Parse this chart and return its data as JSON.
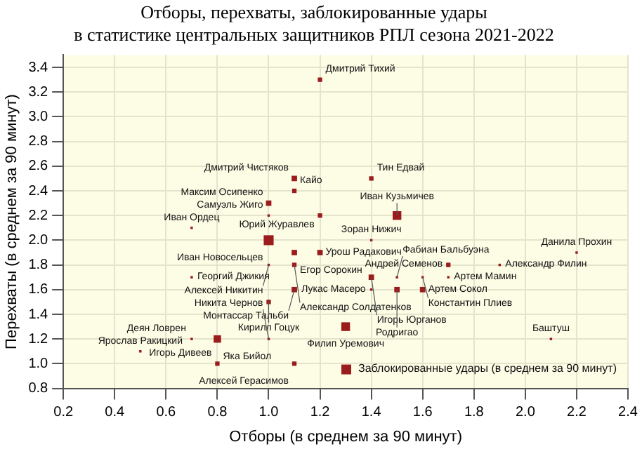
{
  "chart_data": {
    "type": "bubble",
    "title": "Отборы, перехваты, заблокированные удары\nв статистике центральных защитников РПЛ сезона 2021-2022",
    "xlabel": "Отборы (в среднем за 90 минут)",
    "ylabel": "Перехваты (в среднем за 90 минут)",
    "xlim": [
      0.2,
      2.4
    ],
    "xticks": [
      0.2,
      0.4,
      0.6,
      0.8,
      {
        "value": 1,
        "label": "1.0"
      },
      1.2,
      1.4,
      1.6,
      1.8,
      {
        "value": 2,
        "label": "2.0"
      },
      2.2,
      2.4
    ],
    "ylim": [
      0.8,
      3.5
    ],
    "yticks": [
      0.8,
      {
        "value": 1,
        "label": "1.0"
      },
      1.2,
      1.4,
      1.6,
      1.8,
      {
        "value": 2,
        "label": "2.0"
      },
      2.2,
      2.4,
      2.6,
      2.8,
      {
        "value": 3,
        "label": "3.0"
      },
      3.2,
      3.4
    ],
    "grid": true,
    "legend": "bottom right",
    "marker": "square",
    "series": [
      {
        "name": "Заблокированные удары (в среднем за 90 минут)",
        "color": "#9b1c1c",
        "x": [
          1.2,
          1.1,
          1.1,
          1.0,
          1.0,
          1.2,
          1.4,
          1.5,
          0.7,
          1.0,
          1.1,
          1.2,
          1.4,
          1.0,
          1.1,
          0.7,
          1.1,
          1.0,
          1.3,
          0.8,
          0.7,
          1.0,
          0.5,
          0.8,
          1.1,
          1.4,
          1.4,
          1.5,
          1.5,
          1.6,
          1.7,
          1.6,
          1.7,
          1.9,
          2.2,
          2.1
        ],
        "values": [
          3.3,
          2.5,
          2.4,
          2.3,
          2.2,
          2.2,
          2.5,
          2.2,
          2.1,
          2.0,
          1.9,
          1.9,
          2.0,
          1.8,
          1.8,
          1.7,
          1.6,
          1.5,
          1.3,
          1.2,
          1.2,
          1.2,
          1.1,
          1.0,
          1.0,
          1.7,
          1.6,
          1.7,
          1.6,
          1.6,
          1.8,
          1.7,
          1.7,
          1.8,
          1.9,
          1.2
        ],
        "sizes": [
          0.2,
          0.3,
          0.2,
          0.3,
          0.06,
          0.2,
          0.2,
          0.77,
          0.06,
          1,
          0.3,
          0.3,
          0.06,
          0.06,
          0.2,
          0.06,
          0.3,
          0.2,
          0.77,
          0.56,
          0.06,
          0.06,
          0.06,
          0.2,
          0.2,
          0.3,
          0.06,
          0.06,
          0.3,
          0.3,
          0.2,
          0.06,
          0.06,
          0.06,
          0.06,
          0.06
        ]
      }
    ],
    "annotations": [
      {
        "text": "Дмитрий Тихий",
        "x": 1.2,
        "y": 3.3
      },
      {
        "text": "Дмитрий Чистяков",
        "x": 1.1,
        "y": 2.5
      },
      {
        "text": "Кайо",
        "x": 1.1,
        "y": 2.4
      },
      {
        "text": "Максим Осипенко",
        "x": 1.0,
        "y": 2.3
      },
      {
        "text": "Самуэль Жиго",
        "x": 1.0,
        "y": 2.2
      },
      {
        "text": "Юрий Журавлев",
        "x": 1.2,
        "y": 2.2
      },
      {
        "text": "Тин Едвай",
        "x": 1.4,
        "y": 2.5
      },
      {
        "text": "Иван Кузьмичев",
        "x": 1.5,
        "y": 2.2
      },
      {
        "text": "Иван Ордец",
        "x": 0.7,
        "y": 2.1
      },
      {
        "text": "Иван Новосельцев",
        "x": 1.0,
        "y": 2.0
      },
      {
        "text": "Егор Сорокин",
        "x": 1.1,
        "y": 1.9
      },
      {
        "text": "Урош Радакович",
        "x": 1.2,
        "y": 1.9
      },
      {
        "text": "Зоран Нижич",
        "x": 1.4,
        "y": 2.0
      },
      {
        "text": "Алексей Никитин",
        "x": 1.0,
        "y": 1.8
      },
      {
        "text": "Александр Солдатенков",
        "x": 1.1,
        "y": 1.8
      },
      {
        "text": "Георгий Джикия",
        "x": 0.7,
        "y": 1.7
      },
      {
        "text": "Монтассар Тальби",
        "x": 1.1,
        "y": 1.6
      },
      {
        "text": "Кирилл Гоцук",
        "x": 1.0,
        "y": 1.5
      },
      {
        "text": "Филип Уремович",
        "x": 1.3,
        "y": 1.3
      },
      {
        "text": "Яка Бийол",
        "x": 0.8,
        "y": 1.2
      },
      {
        "text": "Деян Ловрен",
        "x": 0.7,
        "y": 1.2
      },
      {
        "text": "Никита Чернов",
        "x": 1.0,
        "y": 1.2
      },
      {
        "text": "Ярослав Ракицкий",
        "x": 0.5,
        "y": 1.1
      },
      {
        "text": "Игорь Дивеев",
        "x": 0.8,
        "y": 1.0
      },
      {
        "text": "Алексей Герасимов",
        "x": 1.1,
        "y": 1.0
      },
      {
        "text": "Игорь Юрганов",
        "x": 1.4,
        "y": 1.7
      },
      {
        "text": "Лукас Масеро",
        "x": 1.4,
        "y": 1.6
      },
      {
        "text": "Фабиан Бальбуэна",
        "x": 1.5,
        "y": 1.7
      },
      {
        "text": "Родригао",
        "x": 1.5,
        "y": 1.6
      },
      {
        "text": "Артем Сокол",
        "x": 1.6,
        "y": 1.6
      },
      {
        "text": "Андрей Семенов",
        "x": 1.7,
        "y": 1.8
      },
      {
        "text": "Константин Плиев",
        "x": 1.6,
        "y": 1.7
      },
      {
        "text": "Артем Мамин",
        "x": 1.7,
        "y": 1.7
      },
      {
        "text": "Александр Филин",
        "x": 1.9,
        "y": 1.8
      },
      {
        "text": "Данила Прохин",
        "x": 2.2,
        "y": 1.9
      },
      {
        "text": "Баштуш",
        "x": 2.1,
        "y": 1.2
      }
    ]
  }
}
